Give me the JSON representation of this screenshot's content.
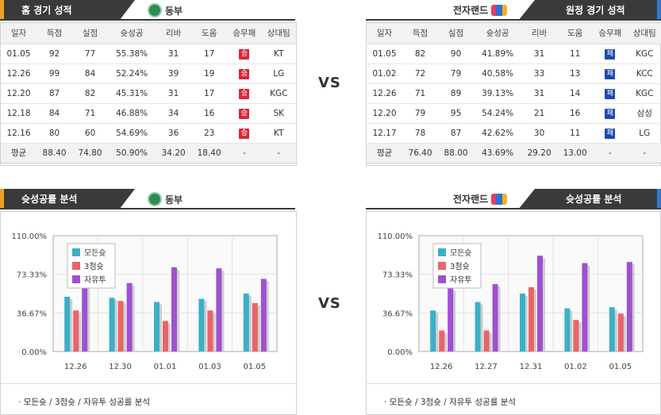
{
  "home_title": "홈 경기 성적",
  "away_title": "원정 경기 성적",
  "home_team": "동부",
  "away_team": "전자랜드",
  "vs": "VS",
  "home_logo": "dongbu-logo-icon",
  "away_logo": "elephants-logo-icon",
  "columns": [
    "일자",
    "득점",
    "실점",
    "슛성공",
    "리바",
    "도움",
    "승무패",
    "상대팀"
  ],
  "home_rows": [
    [
      "01.05",
      "92",
      "77",
      "55.38%",
      "31",
      "17",
      "승",
      "KT"
    ],
    [
      "12.26",
      "99",
      "84",
      "52.24%",
      "39",
      "19",
      "승",
      "LG"
    ],
    [
      "12.20",
      "87",
      "82",
      "45.31%",
      "31",
      "17",
      "승",
      "KGC"
    ],
    [
      "12.18",
      "84",
      "71",
      "46.88%",
      "34",
      "16",
      "승",
      "SK"
    ],
    [
      "12.16",
      "80",
      "60",
      "54.69%",
      "36",
      "23",
      "승",
      "KT"
    ]
  ],
  "home_avg": [
    "평균",
    "88.40",
    "74.80",
    "50.90%",
    "34.20",
    "18.40",
    "-",
    "-"
  ],
  "away_rows": [
    [
      "01.05",
      "82",
      "90",
      "41.89%",
      "31",
      "11",
      "패",
      "KGC"
    ],
    [
      "01.02",
      "72",
      "79",
      "40.58%",
      "33",
      "13",
      "패",
      "KCC"
    ],
    [
      "12.26",
      "71",
      "89",
      "39.13%",
      "31",
      "14",
      "패",
      "KGC"
    ],
    [
      "12.20",
      "79",
      "95",
      "54.24%",
      "21",
      "16",
      "패",
      "삼성"
    ],
    [
      "12.17",
      "78",
      "87",
      "42.62%",
      "30",
      "11",
      "패",
      "LG"
    ]
  ],
  "away_avg": [
    "평균",
    "76.40",
    "88.00",
    "43.69%",
    "29.20",
    "13.00",
    "-",
    "-"
  ],
  "chart_title": "슛성공률 분석",
  "caption": "· 모든슛 / 3점슛 / 자유투 성공률 분석",
  "colors": {
    "all": "#3ab0c8",
    "three": "#e8656a",
    "free": "#a050d0",
    "win": "#d9263b",
    "lose": "#1f47b5"
  },
  "chart_data": [
    {
      "type": "bar",
      "categories": [
        "12.26",
        "12.30",
        "01.01",
        "01.03",
        "01.05"
      ],
      "y_ticks": [
        "0.00%",
        "36.67%",
        "73.33%",
        "110.00%"
      ],
      "ylim": [
        0,
        110
      ],
      "series": [
        {
          "name": "모든슛",
          "values": [
            52,
            51,
            47,
            50,
            55
          ]
        },
        {
          "name": "3점슛",
          "values": [
            39,
            48,
            29,
            39,
            46
          ]
        },
        {
          "name": "자유투",
          "values": [
            65,
            65,
            80,
            79,
            69
          ]
        }
      ],
      "legend": "top-left"
    },
    {
      "type": "bar",
      "categories": [
        "12.26",
        "12.27",
        "12.31",
        "01.02",
        "01.05"
      ],
      "y_ticks": [
        "0.00%",
        "36.67%",
        "73.33%",
        "110.00%"
      ],
      "ylim": [
        0,
        110
      ],
      "series": [
        {
          "name": "모든슛",
          "values": [
            39,
            47,
            55,
            41,
            42
          ]
        },
        {
          "name": "3점슛",
          "values": [
            20,
            20,
            61,
            30,
            36
          ]
        },
        {
          "name": "자유투",
          "values": [
            60,
            64,
            91,
            84,
            85
          ]
        }
      ],
      "legend": "top-left"
    }
  ]
}
